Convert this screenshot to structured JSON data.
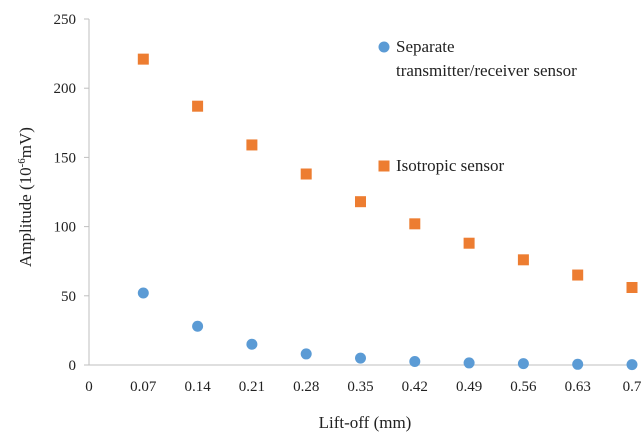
{
  "chart_data": {
    "type": "scatter",
    "title": "",
    "xlabel": "Lift-off (mm)",
    "ylabel": "Amplitude (10",
    "ylabel_sup": "-6",
    "ylabel_tail": "mV)",
    "xlim": [
      0,
      0.7
    ],
    "ylim": [
      0,
      250
    ],
    "x_ticks": [
      0,
      0.07,
      0.14,
      0.21,
      0.28,
      0.35,
      0.42,
      0.49,
      0.56,
      0.63,
      0.7
    ],
    "x_tick_labels": [
      "0",
      "0.07",
      "0.14",
      "0.21",
      "0.28",
      "0.35",
      "0.42",
      "0.49",
      "0.56",
      "0.63",
      "0.7"
    ],
    "y_ticks": [
      0,
      50,
      100,
      150,
      200,
      250
    ],
    "y_tick_labels": [
      "0",
      "50",
      "100",
      "150",
      "200",
      "250"
    ],
    "grid": false,
    "legend_position": "top-right inside",
    "series": [
      {
        "name": "Separate transmitter/receiver sensor",
        "legend_lines": [
          "Separate",
          "transmitter/receiver sensor"
        ],
        "marker": "circle",
        "color": "#5B9BD5",
        "x": [
          0.07,
          0.14,
          0.21,
          0.28,
          0.35,
          0.42,
          0.49,
          0.56,
          0.63,
          0.7
        ],
        "y": [
          52,
          28,
          15,
          8,
          5,
          2.5,
          1.5,
          1,
          0.5,
          0.3
        ]
      },
      {
        "name": "Isotropic sensor",
        "legend_lines": [
          "Isotropic sensor"
        ],
        "marker": "square",
        "color": "#ED7D31",
        "x": [
          0.07,
          0.14,
          0.21,
          0.28,
          0.35,
          0.42,
          0.49,
          0.56,
          0.63,
          0.7
        ],
        "y": [
          221,
          187,
          159,
          138,
          118,
          102,
          88,
          76,
          65,
          56
        ]
      }
    ]
  }
}
